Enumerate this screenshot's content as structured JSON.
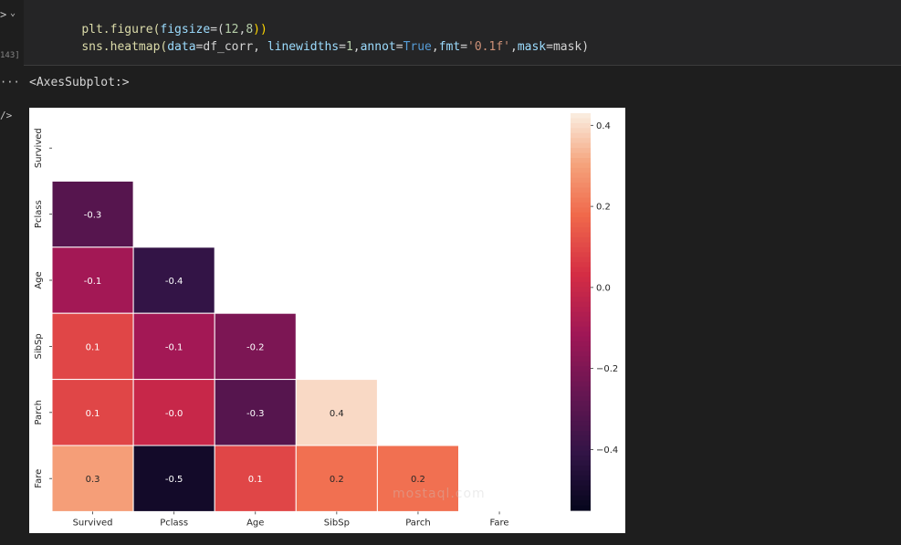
{
  "notebook": {
    "exec_count": "143]",
    "code_lines": [
      [
        "plt.figure(",
        "figsize",
        "=(",
        "12",
        ",",
        "8",
        "))"
      ],
      [
        "sns.heatmap(",
        "data",
        "=df_corr, ",
        "linewidths",
        "=",
        "1",
        ",",
        "annot",
        "=",
        "True",
        ",",
        "fmt",
        "=",
        "'0.1f'",
        ",",
        "mask",
        "=mask)"
      ]
    ],
    "output_text": "<AxesSubplot:>",
    "watermark": "mostaql.com"
  },
  "chart_data": {
    "type": "heatmap",
    "labels": [
      "Survived",
      "Pclass",
      "Age",
      "SibSp",
      "Parch",
      "Fare"
    ],
    "matrix": [
      [
        null,
        null,
        null,
        null,
        null,
        null
      ],
      [
        -0.3,
        null,
        null,
        null,
        null,
        null
      ],
      [
        -0.1,
        -0.4,
        null,
        null,
        null,
        null
      ],
      [
        0.1,
        -0.1,
        -0.2,
        null,
        null,
        null
      ],
      [
        0.1,
        -0.0,
        -0.3,
        0.4,
        null,
        null
      ],
      [
        0.3,
        -0.5,
        0.1,
        0.2,
        0.2,
        null
      ]
    ],
    "annotations": [
      [
        null,
        null,
        null,
        null,
        null,
        null
      ],
      [
        "-0.3",
        null,
        null,
        null,
        null,
        null
      ],
      [
        "-0.1",
        "-0.4",
        null,
        null,
        null,
        null
      ],
      [
        "0.1",
        "-0.1",
        "-0.2",
        null,
        null,
        null
      ],
      [
        "0.1",
        "-0.0",
        "-0.3",
        "0.4",
        null,
        null
      ],
      [
        "0.3",
        "-0.5",
        "0.1",
        "0.2",
        "0.2",
        null
      ]
    ],
    "colormap": "rocket",
    "vmin": -0.55,
    "vmax": 0.43,
    "colorbar_ticks": [
      0.4,
      0.2,
      0.0,
      -0.2,
      -0.4
    ],
    "colorbar_tick_labels": [
      "0.4",
      "0.2",
      "0.0",
      "−0.2",
      "−0.4"
    ],
    "linewidths": 1,
    "grid": false
  }
}
